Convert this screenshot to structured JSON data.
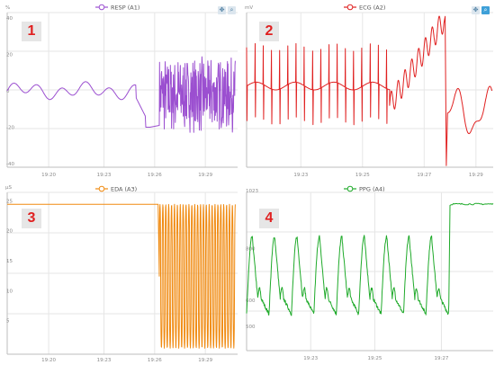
{
  "panels": [
    {
      "id": "p1",
      "badge": "1",
      "legend": "RESP (A1)",
      "color": "#9b4fd0",
      "y_ticks": [
        {
          "label": "40",
          "y": 40
        },
        {
          "label": "20",
          "y": 20
        },
        {
          "label": "0",
          "y": 0
        },
        {
          "label": "-20",
          "y": -20
        },
        {
          "label": "-40",
          "y": -40
        }
      ],
      "y_unit": "%",
      "ylim": [
        -40,
        45
      ],
      "x_ticks": [
        {
          "label": "19:20",
          "x": 0.18
        },
        {
          "label": "19:23",
          "x": 0.42
        },
        {
          "label": "19:26",
          "x": 0.64
        },
        {
          "label": "19:29",
          "x": 0.86
        }
      ],
      "toolbar": true
    },
    {
      "id": "p2",
      "badge": "2",
      "legend": "ECG (A2)",
      "color": "#e02020",
      "y_ticks": [],
      "y_unit": "mV",
      "ylim": [
        -1,
        1
      ],
      "x_ticks": [
        {
          "label": "19:23",
          "x": 0.22
        },
        {
          "label": "19:25",
          "x": 0.47
        },
        {
          "label": "19:27",
          "x": 0.72
        },
        {
          "label": "19:29",
          "x": 0.93
        }
      ],
      "toolbar": true,
      "toolbar_active": true
    },
    {
      "id": "p3",
      "badge": "3",
      "legend": "EDA (A3)",
      "color": "#f08a10",
      "y_ticks": [
        {
          "label": "25",
          "y": 25
        },
        {
          "label": "20",
          "y": 20
        },
        {
          "label": "15",
          "y": 15
        },
        {
          "label": "10",
          "y": 10
        },
        {
          "label": "5",
          "y": 5
        }
      ],
      "y_unit": "µS",
      "ylim": [
        0,
        27
      ],
      "x_ticks": [
        {
          "label": "19:20",
          "x": 0.18
        },
        {
          "label": "19:23",
          "x": 0.42
        },
        {
          "label": "19:26",
          "x": 0.64
        },
        {
          "label": "19:29",
          "x": 0.86
        }
      ],
      "toolbar": false
    },
    {
      "id": "p4",
      "badge": "4",
      "legend": "PPG (A4)",
      "color": "#1faa2a",
      "y_ticks": [
        {
          "label": "1023",
          "y": 1023
        },
        {
          "label": "800",
          "y": 800
        },
        {
          "label": "600",
          "y": 600
        },
        {
          "label": "500",
          "y": 500
        }
      ],
      "y_unit": "",
      "ylim": [
        420,
        1030
      ],
      "x_ticks": [
        {
          "label": "19:23",
          "x": 0.26
        },
        {
          "label": "19:25",
          "x": 0.52
        },
        {
          "label": "19:27",
          "x": 0.79
        }
      ],
      "toolbar": false
    }
  ]
}
